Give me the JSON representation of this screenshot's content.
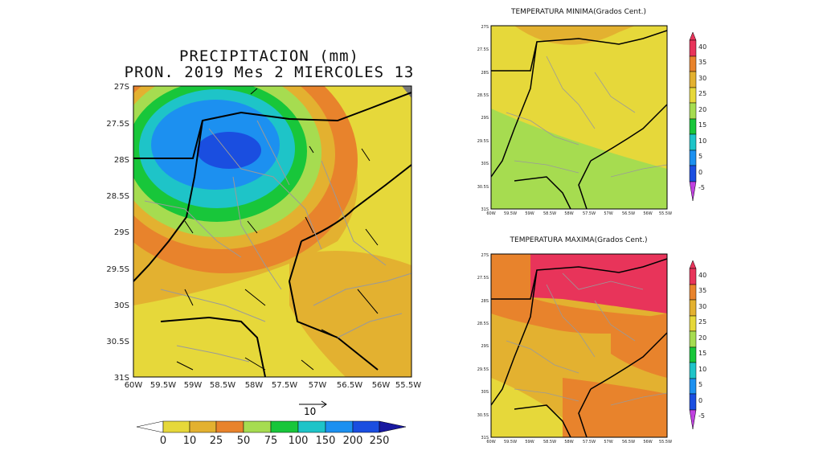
{
  "precip": {
    "title_line1": "PRECIPITACION (mm)",
    "title_line2": "PRON. 2019 Mes 2 MIERCOLES 13",
    "lat_labels": [
      "27S",
      "27.5S",
      "28S",
      "28.5S",
      "29S",
      "29.5S",
      "30S",
      "30.5S",
      "31S"
    ],
    "lon_labels": [
      "60W",
      "59.5W",
      "59W",
      "58.5W",
      "58W",
      "57.5W",
      "57W",
      "56.5W",
      "56W",
      "55.5W"
    ],
    "vector_ref_label": "10",
    "colorbar_labels": [
      "0",
      "10",
      "25",
      "50",
      "75",
      "100",
      "150",
      "200",
      "250"
    ],
    "colorbar_colors": [
      "#ffffff",
      "#e6d83a",
      "#e3b130",
      "#e8832c",
      "#a6dc50",
      "#18c63a",
      "#1ec4c8",
      "#1c90f0",
      "#1a4ee0",
      "#1818a0"
    ]
  },
  "tmin": {
    "title": "TEMPERATURA MINIMA(Grados Cent.)",
    "lat_labels": [
      "27S",
      "27.5S",
      "28S",
      "28.5S",
      "29S",
      "29.5S",
      "30S",
      "30.5S",
      "31S"
    ],
    "lon_labels": [
      "60W",
      "59.5W",
      "59W",
      "58.5W",
      "58W",
      "57.5W",
      "57W",
      "56.5W",
      "56W",
      "55.5W"
    ]
  },
  "tmax": {
    "title": "TEMPERATURA MAXIMA(Grados Cent.)",
    "lat_labels": [
      "27S",
      "27.5S",
      "28S",
      "28.5S",
      "29S",
      "29.5S",
      "30S",
      "30.5S",
      "31S"
    ],
    "lon_labels": [
      "60W",
      "59.5W",
      "59W",
      "58.5W",
      "58W",
      "57.5W",
      "57W",
      "56.5W",
      "56W",
      "55.5W"
    ]
  },
  "temp_colorbar": {
    "labels": [
      "40",
      "35",
      "30",
      "25",
      "20",
      "15",
      "10",
      "5",
      "0",
      "-5"
    ],
    "colors": [
      "#e8345a",
      "#e8832c",
      "#e3b130",
      "#e6d83a",
      "#a6dc50",
      "#18c63a",
      "#1ec4c8",
      "#1c90f0",
      "#1a4ee0"
    ]
  }
}
